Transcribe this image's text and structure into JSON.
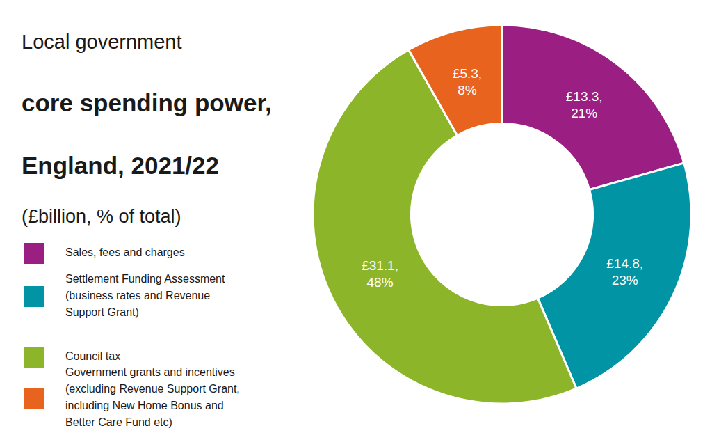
{
  "chart_data": {
    "type": "pie",
    "title": "Local government\ncore spending power,\nEngland, 2021/22",
    "subtitle": "(£billion, % of total)",
    "categories": [
      "Sales, fees and charges",
      "Settlement Funding Assessment\n(business rates and Revenue\nSupport Grant)",
      "Council tax",
      "Government grants and incentives\n(excluding Revenue Support Grant,\nincluding New Home Bonus and\nBetter Care Fund etc)"
    ],
    "values": [
      13.3,
      14.8,
      31.1,
      5.3
    ],
    "value_labels": [
      "£13.3,\n21%",
      "£14.8,\n23%",
      "£31.1,\n48%",
      "£5.3,\n8%"
    ],
    "colors": [
      "#9B1F82",
      "#0094A5",
      "#8DB52A",
      "#E8641E"
    ],
    "data_labels": true,
    "legend": "lower left"
  }
}
